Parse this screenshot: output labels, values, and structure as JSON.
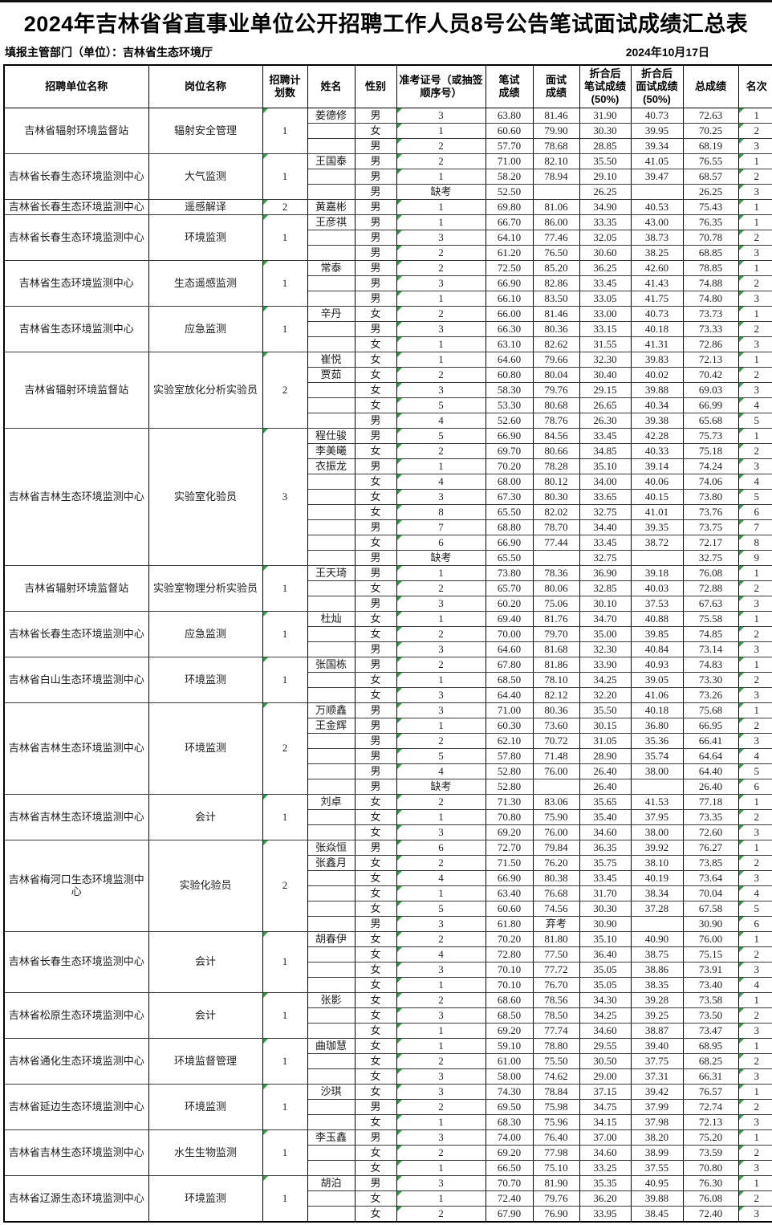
{
  "title": "2024年吉林省省直事业单位公开招聘工作人员8号公告笔试面试成绩汇总表",
  "meta": {
    "department": "填报主管部门（单位）：吉林省生态环境厅",
    "date": "2024年10月17日"
  },
  "colors": {
    "triangle_green": "#2f9e44",
    "border_black": "#000000"
  },
  "table": {
    "headers": [
      "招聘单位名称",
      "岗位名称",
      "招聘计\n划数",
      "姓名",
      "性别",
      "准考证号（或抽签\n顺序号）",
      "笔试\n成绩",
      "面试\n成绩",
      "折合后\n笔试成绩\n(50%)",
      "折合后\n面试成绩\n(50%)",
      "总成绩",
      "名次"
    ],
    "row_fields": [
      "name",
      "gender",
      "ticket",
      "written",
      "interview",
      "written50",
      "interview50",
      "total",
      "rank"
    ],
    "no_triangle_ticket_values": [
      "缺考",
      ""
    ],
    "groups": [
      {
        "unit": "吉林省辐射环境监督站",
        "position": "辐射安全管理",
        "plan": "1",
        "rows": [
          [
            "姜德修",
            "男",
            "3",
            "63.80",
            "81.46",
            "31.90",
            "40.73",
            "72.63",
            "1"
          ],
          [
            "",
            "女",
            "1",
            "60.60",
            "79.90",
            "30.30",
            "39.95",
            "70.25",
            "2"
          ],
          [
            "",
            "男",
            "2",
            "57.70",
            "78.68",
            "28.85",
            "39.34",
            "68.19",
            "3"
          ]
        ]
      },
      {
        "unit": "吉林省长春生态环境监测中心",
        "position": "大气监测",
        "plan": "1",
        "rows": [
          [
            "王国泰",
            "男",
            "2",
            "71.00",
            "82.10",
            "35.50",
            "41.05",
            "76.55",
            "1"
          ],
          [
            "",
            "男",
            "1",
            "58.20",
            "78.94",
            "29.10",
            "39.47",
            "68.57",
            "2"
          ],
          [
            "",
            "男",
            "缺考",
            "52.50",
            "",
            "26.25",
            "",
            "26.25",
            "3"
          ]
        ]
      },
      {
        "unit": "吉林省长春生态环境监测中心",
        "position": "遥感解译",
        "plan": "2",
        "rows": [
          [
            "黄嘉彬",
            "男",
            "1",
            "69.80",
            "81.06",
            "34.90",
            "40.53",
            "75.43",
            "1"
          ]
        ]
      },
      {
        "unit": "吉林省长春生态环境监测中心",
        "position": "环境监测",
        "plan": "1",
        "rows": [
          [
            "王彦祺",
            "男",
            "1",
            "66.70",
            "86.00",
            "33.35",
            "43.00",
            "76.35",
            "1"
          ],
          [
            "",
            "男",
            "3",
            "64.10",
            "77.46",
            "32.05",
            "38.73",
            "70.78",
            "2"
          ],
          [
            "",
            "男",
            "2",
            "61.20",
            "76.50",
            "30.60",
            "38.25",
            "68.85",
            "3"
          ]
        ]
      },
      {
        "unit": "吉林省生态环境监测中心",
        "position": "生态遥感监测",
        "plan": "1",
        "rows": [
          [
            "常泰",
            "男",
            "2",
            "72.50",
            "85.20",
            "36.25",
            "42.60",
            "78.85",
            "1"
          ],
          [
            "",
            "男",
            "3",
            "66.90",
            "82.86",
            "33.45",
            "41.43",
            "74.88",
            "2"
          ],
          [
            "",
            "男",
            "1",
            "66.10",
            "83.50",
            "33.05",
            "41.75",
            "74.80",
            "3"
          ]
        ]
      },
      {
        "unit": "吉林省生态环境监测中心",
        "position": "应急监测",
        "plan": "1",
        "rows": [
          [
            "辛丹",
            "女",
            "2",
            "66.00",
            "81.46",
            "33.00",
            "40.73",
            "73.73",
            "1"
          ],
          [
            "",
            "男",
            "3",
            "66.30",
            "80.36",
            "33.15",
            "40.18",
            "73.33",
            "2"
          ],
          [
            "",
            "女",
            "1",
            "63.10",
            "82.62",
            "31.55",
            "41.31",
            "72.86",
            "3"
          ]
        ]
      },
      {
        "unit": "吉林省辐射环境监督站",
        "position": "实验室放化分析实验员",
        "plan": "2",
        "rows": [
          [
            "崔悦",
            "女",
            "1",
            "64.60",
            "79.66",
            "32.30",
            "39.83",
            "72.13",
            "1"
          ],
          [
            "贾茹",
            "女",
            "2",
            "60.80",
            "80.04",
            "30.40",
            "40.02",
            "70.42",
            "2"
          ],
          [
            "",
            "女",
            "3",
            "58.30",
            "79.76",
            "29.15",
            "39.88",
            "69.03",
            "3"
          ],
          [
            "",
            "女",
            "5",
            "53.30",
            "80.68",
            "26.65",
            "40.34",
            "66.99",
            "4"
          ],
          [
            "",
            "男",
            "4",
            "52.60",
            "78.76",
            "26.30",
            "39.38",
            "65.68",
            "5"
          ]
        ]
      },
      {
        "unit": "吉林省吉林生态环境监测中心",
        "position": "实验室化验员",
        "plan": "3",
        "rows": [
          [
            "程仕骏",
            "男",
            "5",
            "66.90",
            "84.56",
            "33.45",
            "42.28",
            "75.73",
            "1"
          ],
          [
            "李美曦",
            "女",
            "2",
            "69.70",
            "80.66",
            "34.85",
            "40.33",
            "75.18",
            "2"
          ],
          [
            "衣振龙",
            "男",
            "1",
            "70.20",
            "78.28",
            "35.10",
            "39.14",
            "74.24",
            "3"
          ],
          [
            "",
            "女",
            "4",
            "68.00",
            "80.12",
            "34.00",
            "40.06",
            "74.06",
            "4"
          ],
          [
            "",
            "女",
            "3",
            "67.30",
            "80.30",
            "33.65",
            "40.15",
            "73.80",
            "5"
          ],
          [
            "",
            "女",
            "8",
            "65.50",
            "82.02",
            "32.75",
            "41.01",
            "73.76",
            "6"
          ],
          [
            "",
            "男",
            "7",
            "68.80",
            "78.70",
            "34.40",
            "39.35",
            "73.75",
            "7"
          ],
          [
            "",
            "女",
            "6",
            "66.90",
            "77.44",
            "33.45",
            "38.72",
            "72.17",
            "8"
          ],
          [
            "",
            "男",
            "缺考",
            "65.50",
            "",
            "32.75",
            "",
            "32.75",
            "9"
          ]
        ]
      },
      {
        "unit": "吉林省辐射环境监督站",
        "position": "实验室物理分析实验员",
        "plan": "1",
        "rows": [
          [
            "王天琦",
            "男",
            "1",
            "73.80",
            "78.36",
            "36.90",
            "39.18",
            "76.08",
            "1"
          ],
          [
            "",
            "女",
            "2",
            "65.70",
            "80.06",
            "32.85",
            "40.03",
            "72.88",
            "2"
          ],
          [
            "",
            "男",
            "3",
            "60.20",
            "75.06",
            "30.10",
            "37.53",
            "67.63",
            "3"
          ]
        ]
      },
      {
        "unit": "吉林省长春生态环境监测中心",
        "position": "应急监测",
        "plan": "1",
        "rows": [
          [
            "杜灿",
            "女",
            "1",
            "69.40",
            "81.76",
            "34.70",
            "40.88",
            "75.58",
            "1"
          ],
          [
            "",
            "女",
            "2",
            "70.00",
            "79.70",
            "35.00",
            "39.85",
            "74.85",
            "2"
          ],
          [
            "",
            "男",
            "3",
            "64.60",
            "81.68",
            "32.30",
            "40.84",
            "73.14",
            "3"
          ]
        ]
      },
      {
        "unit": "吉林省白山生态环境监测中心",
        "position": "环境监测",
        "plan": "1",
        "rows": [
          [
            "张国栋",
            "男",
            "2",
            "67.80",
            "81.86",
            "33.90",
            "40.93",
            "74.83",
            "1"
          ],
          [
            "",
            "女",
            "1",
            "68.50",
            "78.10",
            "34.25",
            "39.05",
            "73.30",
            "2"
          ],
          [
            "",
            "女",
            "3",
            "64.40",
            "82.12",
            "32.20",
            "41.06",
            "73.26",
            "3"
          ]
        ]
      },
      {
        "unit": "吉林省吉林生态环境监测中心",
        "position": "环境监测",
        "plan": "2",
        "rows": [
          [
            "万顺鑫",
            "男",
            "3",
            "71.00",
            "80.36",
            "35.50",
            "40.18",
            "75.68",
            "1"
          ],
          [
            "王金辉",
            "男",
            "1",
            "60.30",
            "73.60",
            "30.15",
            "36.80",
            "66.95",
            "2"
          ],
          [
            "",
            "男",
            "2",
            "62.10",
            "70.72",
            "31.05",
            "35.36",
            "66.41",
            "3"
          ],
          [
            "",
            "男",
            "5",
            "57.80",
            "71.48",
            "28.90",
            "35.74",
            "64.64",
            "4"
          ],
          [
            "",
            "男",
            "4",
            "52.80",
            "76.00",
            "26.40",
            "38.00",
            "64.40",
            "5"
          ],
          [
            "",
            "男",
            "缺考",
            "52.80",
            "",
            "26.40",
            "",
            "26.40",
            "6"
          ]
        ]
      },
      {
        "unit": "吉林省吉林生态环境监测中心",
        "position": "会计",
        "plan": "1",
        "rows": [
          [
            "刘卓",
            "女",
            "2",
            "71.30",
            "83.06",
            "35.65",
            "41.53",
            "77.18",
            "1"
          ],
          [
            "",
            "女",
            "1",
            "70.80",
            "75.90",
            "35.40",
            "37.95",
            "73.35",
            "2"
          ],
          [
            "",
            "女",
            "3",
            "69.20",
            "76.00",
            "34.60",
            "38.00",
            "72.60",
            "3"
          ]
        ]
      },
      {
        "unit": "吉林省梅河口生态环境监测中心",
        "position": "实验化验员",
        "plan": "2",
        "rows": [
          [
            "张焱恒",
            "男",
            "6",
            "72.70",
            "79.84",
            "36.35",
            "39.92",
            "76.27",
            "1"
          ],
          [
            "张鑫月",
            "女",
            "2",
            "71.50",
            "76.20",
            "35.75",
            "38.10",
            "73.85",
            "2"
          ],
          [
            "",
            "女",
            "4",
            "66.90",
            "80.38",
            "33.45",
            "40.19",
            "73.64",
            "3"
          ],
          [
            "",
            "女",
            "1",
            "63.40",
            "76.68",
            "31.70",
            "38.34",
            "70.04",
            "4"
          ],
          [
            "",
            "女",
            "5",
            "60.60",
            "74.56",
            "30.30",
            "37.28",
            "67.58",
            "5"
          ],
          [
            "",
            "男",
            "3",
            "61.80",
            "弃考",
            "30.90",
            "",
            "30.90",
            "6"
          ]
        ]
      },
      {
        "unit": "吉林省长春生态环境监测中心",
        "position": "会计",
        "plan": "1",
        "rows": [
          [
            "胡春伊",
            "女",
            "2",
            "70.20",
            "81.80",
            "35.10",
            "40.90",
            "76.00",
            "1"
          ],
          [
            "",
            "女",
            "4",
            "72.80",
            "77.50",
            "36.40",
            "38.75",
            "75.15",
            "2"
          ],
          [
            "",
            "女",
            "3",
            "70.10",
            "77.72",
            "35.05",
            "38.86",
            "73.91",
            "3"
          ],
          [
            "",
            "女",
            "1",
            "70.10",
            "76.70",
            "35.05",
            "38.35",
            "73.40",
            "4"
          ]
        ]
      },
      {
        "unit": "吉林省松原生态环境监测中心",
        "position": "会计",
        "plan": "1",
        "rows": [
          [
            "张影",
            "女",
            "2",
            "68.60",
            "78.56",
            "34.30",
            "39.28",
            "73.58",
            "1"
          ],
          [
            "",
            "女",
            "3",
            "68.50",
            "78.50",
            "34.25",
            "39.25",
            "73.50",
            "2"
          ],
          [
            "",
            "女",
            "1",
            "69.20",
            "77.74",
            "34.60",
            "38.87",
            "73.47",
            "3"
          ]
        ]
      },
      {
        "unit": "吉林省通化生态环境监测中心",
        "position": "环境监督管理",
        "plan": "1",
        "rows": [
          [
            "曲珈慧",
            "女",
            "1",
            "59.10",
            "78.80",
            "29.55",
            "39.40",
            "68.95",
            "1"
          ],
          [
            "",
            "女",
            "2",
            "61.00",
            "75.50",
            "30.50",
            "37.75",
            "68.25",
            "2"
          ],
          [
            "",
            "女",
            "3",
            "58.00",
            "74.62",
            "29.00",
            "37.31",
            "66.31",
            "3"
          ]
        ]
      },
      {
        "unit": "吉林省延边生态环境监测中心",
        "position": "环境监测",
        "plan": "1",
        "rows": [
          [
            "沙琪",
            "女",
            "3",
            "74.30",
            "78.84",
            "37.15",
            "39.42",
            "76.57",
            "1"
          ],
          [
            "",
            "男",
            "2",
            "69.50",
            "75.98",
            "34.75",
            "37.99",
            "72.74",
            "2"
          ],
          [
            "",
            "女",
            "1",
            "68.30",
            "75.96",
            "34.15",
            "37.98",
            "72.13",
            "3"
          ]
        ]
      },
      {
        "unit": "吉林省吉林生态环境监测中心",
        "position": "水生生物监测",
        "plan": "1",
        "rows": [
          [
            "李玉鑫",
            "男",
            "3",
            "74.00",
            "76.40",
            "37.00",
            "38.20",
            "75.20",
            "1"
          ],
          [
            "",
            "女",
            "2",
            "69.20",
            "77.98",
            "34.60",
            "38.99",
            "73.59",
            "2"
          ],
          [
            "",
            "女",
            "1",
            "66.50",
            "75.10",
            "33.25",
            "37.55",
            "70.80",
            "3"
          ]
        ]
      },
      {
        "unit": "吉林省辽源生态环境监测中心",
        "position": "环境监测",
        "plan": "1",
        "rows": [
          [
            "胡泊",
            "男",
            "3",
            "70.70",
            "81.90",
            "35.35",
            "40.95",
            "76.30",
            "1"
          ],
          [
            "",
            "女",
            "1",
            "72.40",
            "79.76",
            "36.20",
            "39.88",
            "76.08",
            "2"
          ],
          [
            "",
            "女",
            "2",
            "67.90",
            "76.90",
            "33.95",
            "38.45",
            "72.40",
            "3"
          ]
        ]
      }
    ]
  }
}
